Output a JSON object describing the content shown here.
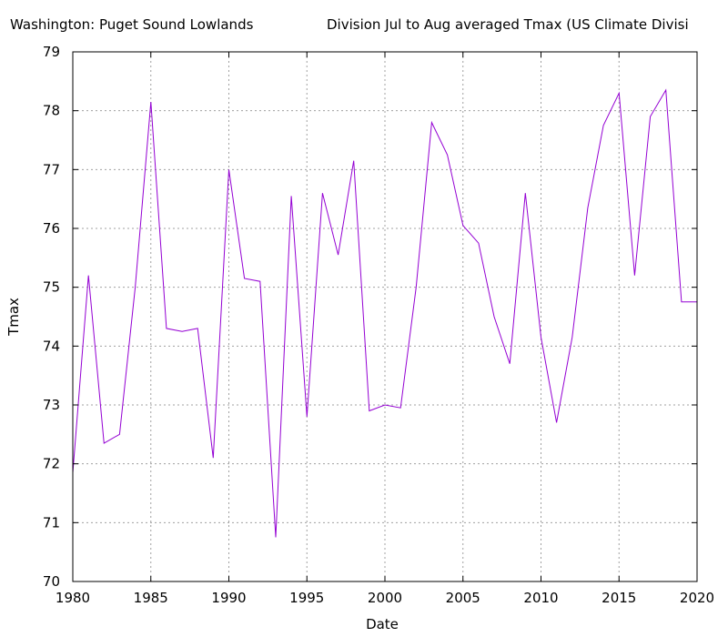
{
  "chart_data": {
    "type": "line",
    "title_left": "Washington: Puget Sound Lowlands",
    "title_right": "Division  Jul to Aug averaged  Tmax  (US Climate Divisi",
    "xlabel": "Date",
    "ylabel": "Tmax",
    "xlim": [
      1980,
      2020
    ],
    "ylim": [
      70,
      79
    ],
    "x_ticks": [
      "1980",
      "1985",
      "1990",
      "1995",
      "2000",
      "2005",
      "2010",
      "2015",
      "2020"
    ],
    "y_ticks": [
      "70",
      "71",
      "72",
      "73",
      "74",
      "75",
      "76",
      "77",
      "78",
      "79"
    ],
    "grid": true,
    "line_color": "#9400d3",
    "series": [
      {
        "x": [
          1980,
          1981,
          1982,
          1983,
          1984,
          1985,
          1986,
          1987,
          1988,
          1989,
          1990,
          1991,
          1992,
          1993,
          1994,
          1995,
          1996,
          1997,
          1998,
          1999,
          2000,
          2001,
          2002,
          2003,
          2004,
          2005,
          2006,
          2007,
          2008,
          2009,
          2010,
          2011,
          2012,
          2013,
          2014,
          2015,
          2016,
          2017,
          2018,
          2019,
          2020
        ],
        "values": [
          71.85,
          75.2,
          72.35,
          72.5,
          75.0,
          78.15,
          74.3,
          74.25,
          74.3,
          72.1,
          77.0,
          75.15,
          75.1,
          70.75,
          76.55,
          72.8,
          76.6,
          75.55,
          77.15,
          72.9,
          73.0,
          72.95,
          75.0,
          77.8,
          77.25,
          76.05,
          75.75,
          74.5,
          73.7,
          76.6,
          74.15,
          72.7,
          74.15,
          76.35,
          77.75,
          78.3,
          75.2,
          77.9,
          78.35,
          74.75,
          74.75
        ]
      }
    ]
  }
}
